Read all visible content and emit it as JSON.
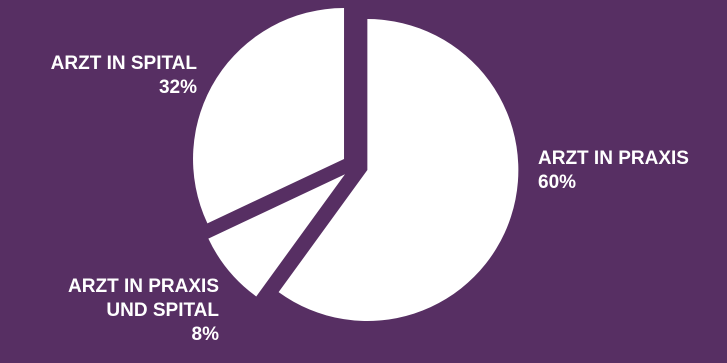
{
  "chart_data": {
    "type": "pie",
    "title": "",
    "slices": [
      {
        "label": "ARZT IN PRAXIS",
        "label_lines": [
          "ARZT IN PRAXIS"
        ],
        "value": 60,
        "value_label": "60%"
      },
      {
        "label": "ARZT IN PRAXIS UND SPITAL",
        "label_lines": [
          "ARZT IN PRAXIS",
          "UND SPITAL"
        ],
        "value": 8,
        "value_label": "8%"
      },
      {
        "label": "ARZT IN SPITAL",
        "label_lines": [
          "ARZT IN SPITAL"
        ],
        "value": 32,
        "value_label": "32%"
      }
    ],
    "start_angle": "12 o'clock",
    "direction": "clockwise",
    "exploded": true,
    "colors": {
      "background": "#572f63",
      "slices": "#ffffff",
      "labels": "#ffffff"
    }
  }
}
